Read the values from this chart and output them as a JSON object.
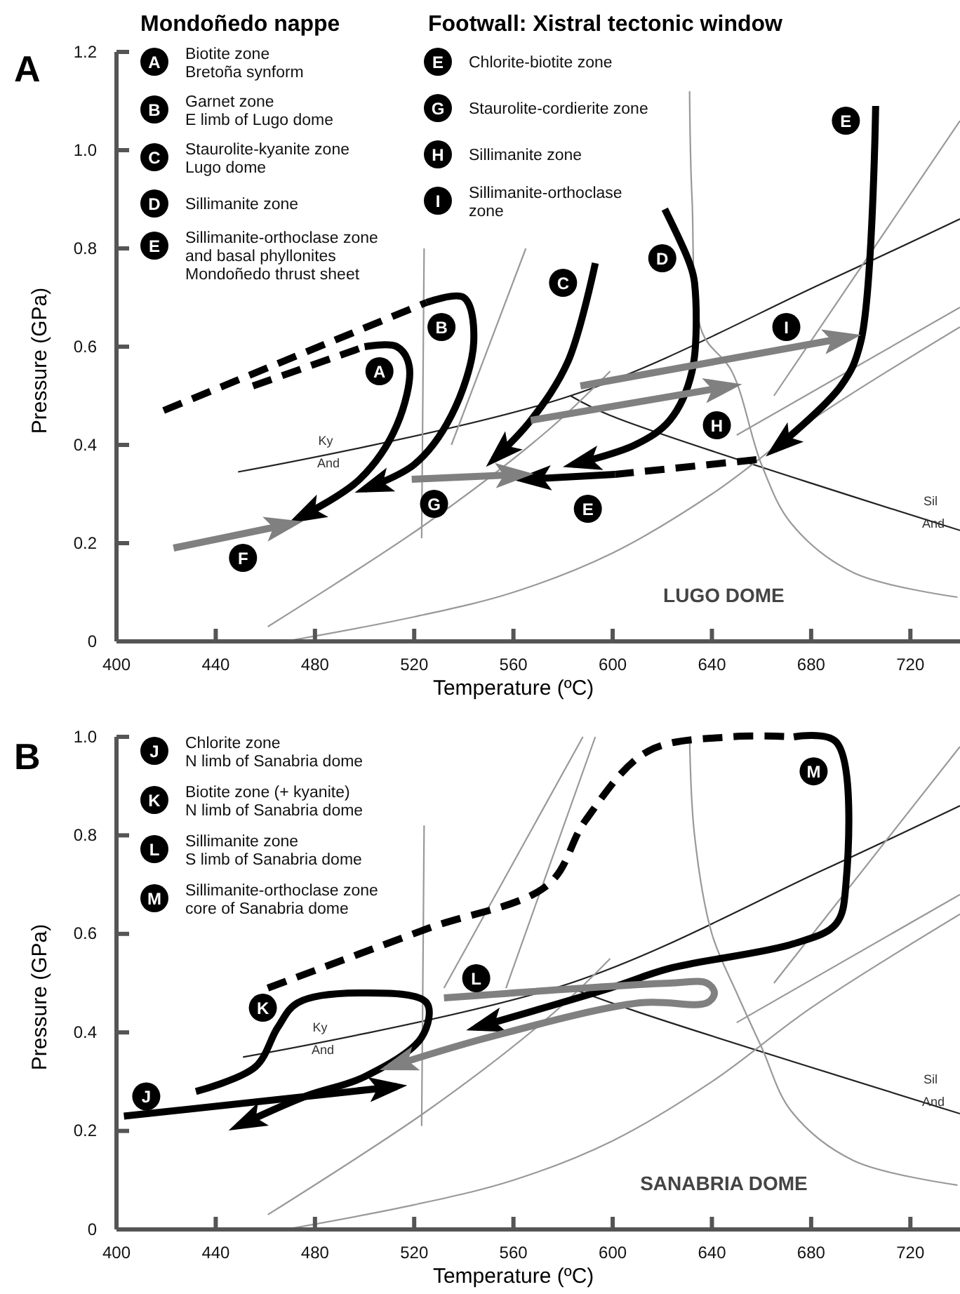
{
  "chart_data": [
    {
      "type": "line",
      "title": "A",
      "xlabel": "Temperature (ºC)",
      "ylabel": "Pressure (GPa)",
      "xlim": [
        400,
        740
      ],
      "xticks": [
        400,
        440,
        480,
        520,
        560,
        600,
        640,
        680,
        720
      ],
      "ylim": [
        0,
        1.2
      ],
      "yticks": [
        0,
        0.2,
        0.4,
        0.6,
        0.8,
        {
          "value": 1,
          "label": "1.0"
        },
        1.2
      ],
      "series": [
        {
          "color": "#222222",
          "x": [
            449,
            583,
            685,
            740
          ],
          "values": [
            0.345,
            0.5,
            0.73,
            0.86
          ]
        },
        {
          "color": "#222222",
          "x": [
            583,
            599,
            740
          ],
          "values": [
            0.5,
            0.46,
            0.226
          ]
        },
        {
          "color": "#999999",
          "x": [
            631,
            632,
            636,
            648,
            660,
            672,
            697,
            739
          ],
          "values": [
            1.12,
            0.9,
            0.63,
            0.55,
            0.36,
            0.24,
            0.14,
            0.09
          ]
        },
        {
          "color": "#999999",
          "x": [
            468,
            520,
            560,
            600,
            640,
            680,
            740
          ],
          "values": [
            0,
            0.05,
            0.1,
            0.18,
            0.3,
            0.45,
            0.64
          ]
        },
        {
          "color": "#999999",
          "x": [
            461,
            525,
            574,
            599
          ],
          "values": [
            0.03,
            0.24,
            0.43,
            0.55
          ]
        },
        {
          "color": "#999999",
          "x": [
            523,
            524
          ],
          "values": [
            0.21,
            0.8
          ]
        },
        {
          "color": "#999999",
          "x": [
            535,
            565
          ],
          "values": [
            0.4,
            0.8
          ]
        },
        {
          "color": "#999999",
          "x": [
            665,
            740
          ],
          "values": [
            0.5,
            1.06
          ]
        },
        {
          "color": "#999999",
          "x": [
            650,
            740
          ],
          "values": [
            0.42,
            0.68
          ]
        },
        {
          "color": "#000000",
          "line_style": "dashed",
          "x": [
            455,
            500
          ],
          "values": [
            0.52,
            0.6
          ]
        },
        {
          "color": "#000000",
          "line_style": "solid",
          "x": [
            500,
            513,
            518,
            513,
            498,
            473
          ],
          "values": [
            0.6,
            0.6,
            0.56,
            0.44,
            0.33,
            0.25
          ]
        },
        {
          "color": "#000000",
          "line_style": "dashed",
          "x": [
            419,
            525
          ],
          "values": [
            0.47,
            0.69
          ]
        },
        {
          "color": "#000000",
          "line_style": "solid",
          "x": [
            525,
            540,
            544,
            535,
            520,
            500
          ],
          "values": [
            0.69,
            0.7,
            0.61,
            0.46,
            0.36,
            0.31
          ]
        },
        {
          "color": "#000000",
          "line_style": "solid",
          "x": [
            593,
            582,
            567,
            552
          ],
          "values": [
            0.77,
            0.57,
            0.45,
            0.37
          ]
        },
        {
          "color": "#000000",
          "line_style": "solid",
          "x": [
            621,
            631,
            633,
            632,
            623,
            609,
            584
          ],
          "values": [
            0.88,
            0.77,
            0.73,
            0.55,
            0.45,
            0.4,
            0.36
          ]
        },
        {
          "color": "#000000",
          "line_style": "solid",
          "x": [
            706,
            700,
            692,
            665
          ],
          "values": [
            1.09,
            0.61,
            0.52,
            0.39
          ]
        },
        {
          "color": "#000000",
          "line_style": "dashed",
          "x": [
            658,
            601
          ],
          "values": [
            0.37,
            0.34
          ]
        },
        {
          "color": "#000000",
          "line_style": "solid",
          "x": [
            601,
            564
          ],
          "values": [
            0.34,
            0.33
          ]
        },
        {
          "color": "#808080",
          "line_style": "solid",
          "x": [
            423,
            471
          ],
          "values": [
            0.19,
            0.24
          ]
        },
        {
          "color": "#808080",
          "line_style": "solid",
          "x": [
            519,
            564
          ],
          "values": [
            0.33,
            0.34
          ]
        },
        {
          "color": "#808080",
          "line_style": "solid",
          "x": [
            567,
            648
          ],
          "values": [
            0.45,
            0.52
          ]
        },
        {
          "color": "#808080",
          "line_style": "solid",
          "x": [
            587,
            696
          ],
          "values": [
            0.52,
            0.62
          ]
        }
      ],
      "annotations": [
        "Mondoñedo nappe",
        "Footwall: Xistral tectonic window",
        "A",
        "Biotite zone\nBretoña synform",
        "B",
        "Garnet zone\nE limb of Lugo dome",
        "C",
        "Staurolite-kyanite zone\nLugo dome",
        "D",
        "Sillimanite zone",
        "E",
        "Sillimanite-orthoclase zone\nand basal phyllonites\nMondoñedo thrust sheet",
        "E",
        "Chlorite-biotite zone",
        "G",
        "Staurolite-cordierite zone",
        "H",
        "Sillimanite zone",
        "I",
        "Sillimanite-orthoclase\nzone",
        {
          "text": "A",
          "x": 506,
          "y": 0.55
        },
        {
          "text": "B",
          "x": 531,
          "y": 0.64
        },
        {
          "text": "C",
          "x": 580,
          "y": 0.73
        },
        {
          "text": "D",
          "x": 620,
          "y": 0.78
        },
        {
          "text": "E",
          "x": 694,
          "y": 1.06
        },
        {
          "text": "I",
          "x": 670,
          "y": 0.64
        },
        {
          "text": "H",
          "x": 642,
          "y": 0.44
        },
        {
          "text": "E",
          "x": 590,
          "y": 0.27
        },
        {
          "text": "G",
          "x": 528,
          "y": 0.28
        },
        {
          "text": "F",
          "x": 451,
          "y": 0.17
        },
        "Ky",
        "And",
        "Sil",
        "And",
        "LUGO DOME"
      ]
    },
    {
      "type": "line",
      "title": "B",
      "xlabel": "Temperature (ºC)",
      "ylabel": "Pressure (GPa)",
      "xlim": [
        400,
        740
      ],
      "xticks": [
        400,
        440,
        480,
        520,
        560,
        600,
        640,
        680,
        720
      ],
      "ylim": [
        0,
        1
      ],
      "yticks": [
        0,
        0.2,
        0.4,
        0.6,
        0.8,
        {
          "value": 1,
          "label": "1.0"
        }
      ],
      "series": [
        {
          "color": "#222222",
          "x": [
            451,
            583,
            685,
            740
          ],
          "values": [
            0.35,
            0.5,
            0.73,
            0.86
          ]
        },
        {
          "color": "#222222",
          "x": [
            583,
            611,
            740
          ],
          "values": [
            0.49,
            0.44,
            0.235
          ]
        },
        {
          "color": "#999999",
          "x": [
            631,
            633,
            640,
            650,
            660,
            672,
            697,
            739
          ],
          "values": [
            1,
            0.8,
            0.6,
            0.48,
            0.37,
            0.24,
            0.14,
            0.09
          ]
        },
        {
          "color": "#999999",
          "x": [
            468,
            520,
            560,
            600,
            640,
            680,
            740
          ],
          "values": [
            0,
            0.05,
            0.1,
            0.18,
            0.3,
            0.45,
            0.64
          ]
        },
        {
          "color": "#999999",
          "x": [
            461,
            525,
            574,
            599
          ],
          "values": [
            0.03,
            0.24,
            0.43,
            0.55
          ]
        },
        {
          "color": "#999999",
          "x": [
            523,
            524
          ],
          "values": [
            0.21,
            0.82
          ]
        },
        {
          "color": "#999999",
          "x": [
            532,
            588
          ],
          "values": [
            0.49,
            1
          ]
        },
        {
          "color": "#999999",
          "x": [
            557,
            593
          ],
          "values": [
            0.49,
            1
          ]
        },
        {
          "color": "#999999",
          "x": [
            665,
            740
          ],
          "values": [
            0.5,
            0.98
          ]
        },
        {
          "color": "#999999",
          "x": [
            650,
            740
          ],
          "values": [
            0.42,
            0.68
          ]
        },
        {
          "color": "#000000",
          "line_style": "dashed",
          "x": [
            461,
            525,
            574,
            589,
            614,
            648,
            673
          ],
          "values": [
            0.49,
            0.61,
            0.7,
            0.83,
            0.97,
            1,
            1
          ]
        },
        {
          "color": "#000000",
          "line_style": "solid",
          "x": [
            673,
            690,
            694,
            690,
            673,
            623,
            599,
            545
          ],
          "values": [
            1,
            0.99,
            0.7,
            0.62,
            0.58,
            0.53,
            0.49,
            0.41
          ]
        },
        {
          "color": "#000000",
          "line_style": "solid",
          "x": [
            432,
            456,
            465,
            473,
            500,
            525,
            523,
            500,
            476,
            449
          ],
          "values": [
            0.28,
            0.33,
            0.41,
            0.46,
            0.48,
            0.46,
            0.39,
            0.31,
            0.27,
            0.21
          ]
        },
        {
          "color": "#000000",
          "line_style": "solid",
          "x": [
            403,
            513
          ],
          "values": [
            0.23,
            0.29
          ]
        },
        {
          "color": "#808080",
          "line_style": "solid",
          "x": [
            532,
            623,
            638,
            641,
            638,
            611,
            550,
            510
          ],
          "values": [
            0.47,
            0.5,
            0.5,
            0.48,
            0.46,
            0.46,
            0.39,
            0.33
          ]
        }
      ],
      "annotations": [
        "J",
        "Chlorite zone\nN limb of Sanabria dome",
        "K",
        "Biotite zone (+ kyanite)\nN limb of Sanabria dome",
        "L",
        "Sillimanite zone\nS limb of Sanabria dome",
        "M",
        "Sillimanite-orthoclase zone\ncore of Sanabria dome",
        {
          "text": "J",
          "x": 412,
          "y": 0.27
        },
        {
          "text": "K",
          "x": 459,
          "y": 0.45
        },
        {
          "text": "L",
          "x": 545,
          "y": 0.51
        },
        {
          "text": "M",
          "x": 681,
          "y": 0.93
        },
        "Ky",
        "And",
        "Sil",
        "And",
        "SANABRIA DOME"
      ]
    }
  ]
}
